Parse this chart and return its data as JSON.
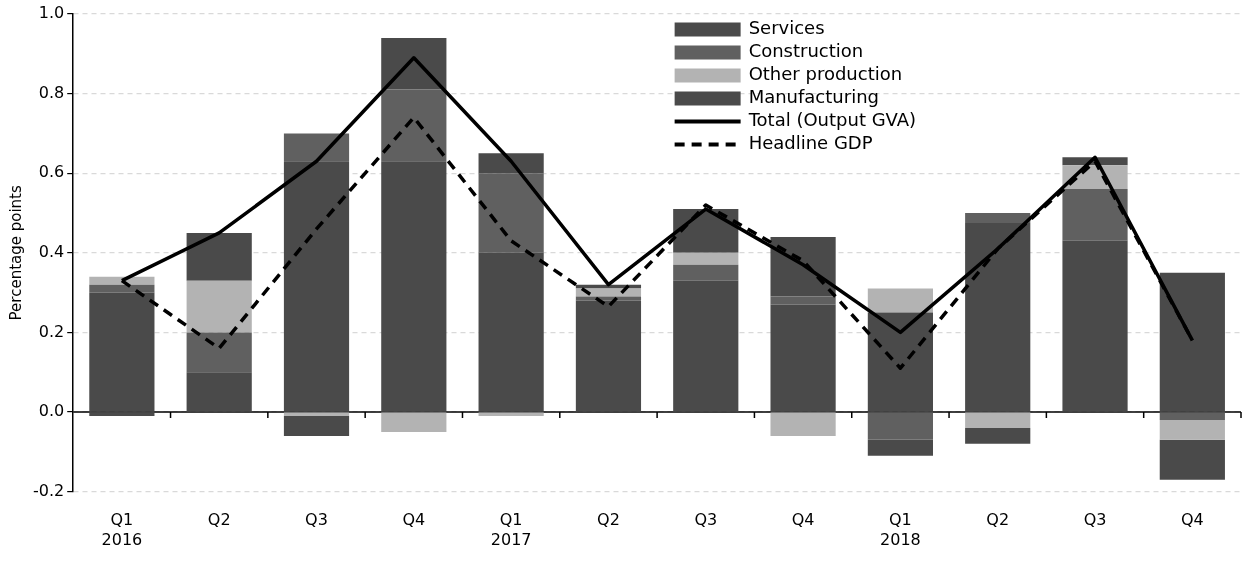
{
  "chart_data": {
    "type": "bar",
    "ylabel": "Percentage points",
    "stacked": true,
    "categories": [
      "Q1\n2016",
      "Q2",
      "Q3",
      "Q4",
      "Q1\n2017",
      "Q2",
      "Q3",
      "Q4",
      "Q1\n2018",
      "Q2",
      "Q3",
      "Q4"
    ],
    "series": [
      {
        "name": "Services",
        "color": "#4a4a4a",
        "values": [
          0.3,
          0.1,
          0.63,
          0.63,
          0.4,
          0.28,
          0.33,
          0.27,
          0.25,
          0.475,
          0.43,
          0.35
        ]
      },
      {
        "name": "Construction",
        "color": "#606060",
        "values": [
          0.02,
          0.1,
          0.07,
          0.18,
          0.2,
          0.01,
          0.04,
          0.02,
          -0.07,
          0.025,
          0.13,
          -0.02
        ]
      },
      {
        "name": "Other production",
        "color": "#b3b3b3",
        "values": [
          0.02,
          0.13,
          -0.01,
          -0.05,
          -0.01,
          0.02,
          0.03,
          -0.06,
          0.06,
          -0.04,
          0.06,
          -0.05
        ]
      },
      {
        "name": "Manufacturing",
        "color": "#4a4a4a",
        "values": [
          -0.01,
          0.12,
          -0.05,
          0.13,
          0.05,
          0.01,
          0.11,
          0.15,
          -0.04,
          -0.04,
          0.02,
          -0.1
        ]
      },
      {
        "name": "Total (Output GVA)",
        "type": "line",
        "color": "#000000",
        "line_style": "solid",
        "values": [
          0.33,
          0.45,
          0.63,
          0.89,
          0.63,
          0.32,
          0.51,
          0.37,
          0.2,
          0.41,
          0.64,
          0.18
        ]
      },
      {
        "name": "Headline GDP",
        "type": "line",
        "color": "#000000",
        "line_style": "dashed",
        "values": [
          0.33,
          0.16,
          0.46,
          0.74,
          0.43,
          0.265,
          0.52,
          0.38,
          0.11,
          0.41,
          0.63,
          0.18
        ]
      }
    ],
    "ylim": [
      -0.2,
      1.0
    ],
    "yticks": [
      -0.2,
      {
        "value": 0,
        "label": "0.0"
      },
      0.2,
      0.4,
      0.6,
      0.8,
      {
        "value": 1,
        "label": "1.0"
      }
    ],
    "grid": "y",
    "legend": "top right",
    "marker": "none"
  }
}
